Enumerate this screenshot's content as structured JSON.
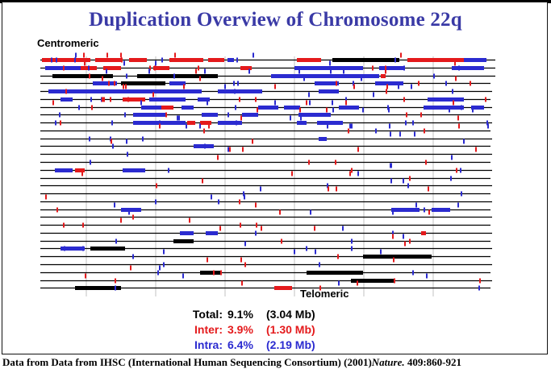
{
  "title": "Duplication Overview of Chromosome 22q",
  "labels": {
    "centromeric": "Centromeric",
    "telomeric": "Telomeric"
  },
  "colors": {
    "inter": "#e41a1c",
    "intra": "#2b2bd0",
    "line": "#000000",
    "title": "#3a3aa6"
  },
  "stats": [
    {
      "label": "Total:",
      "percent": "9.1%",
      "mb": "(3.04 Mb)",
      "color": "#000000"
    },
    {
      "label": "Inter:",
      "percent": "3.9%",
      "mb": "(1.30 Mb)",
      "color": "#e41a1c"
    },
    {
      "label": "Intra:",
      "percent": "6.4%",
      "mb": "(2.19 Mb)",
      "color": "#2b2bd0"
    }
  ],
  "footer": {
    "prefix": "Data from Data from IHSC (International Human Sequencing Consortium) (2001)",
    "journal": "Nature.",
    "ref": " 409:860-921"
  }
}
